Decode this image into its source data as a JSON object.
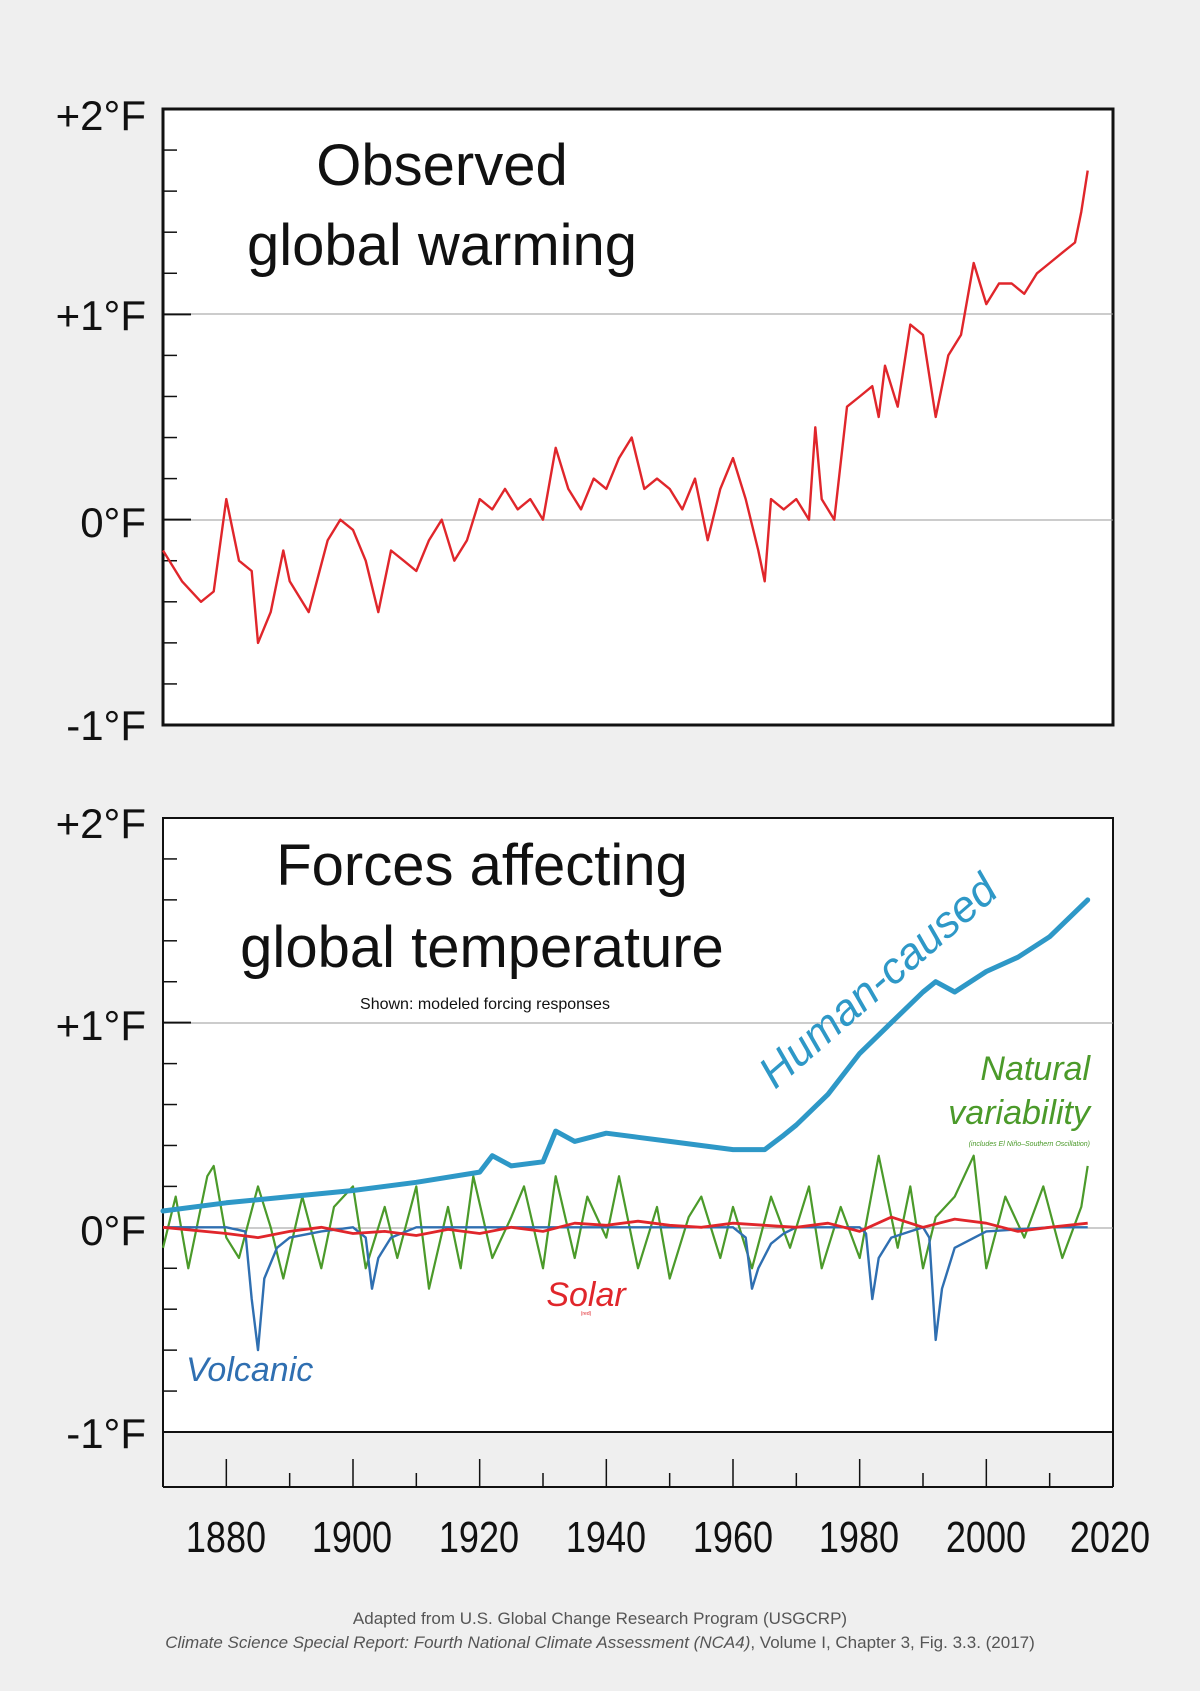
{
  "colors": {
    "observed": "#e0262b",
    "human": "#2e98c7",
    "natural": "#4b9a2a",
    "solar": "#e0262b",
    "volcanic": "#2f6fb1",
    "background": "#efefef",
    "panel": "#ffffff"
  },
  "caption": {
    "line1": "Adapted from U.S. Global Change Research Program (USGCRP)",
    "line2_italic": "Climate Science Special Report: Fourth National Climate Assessment (NCA4)",
    "line2_rest": ", Volume I, Chapter 3, Fig. 3.3. (2017)"
  },
  "chart_data": [
    {
      "type": "line",
      "title": "Observed global warming",
      "title_lines": [
        "Observed",
        "global warming"
      ],
      "xlim": [
        1870,
        2020
      ],
      "ylim": [
        -1,
        2
      ],
      "y_tick_labels": [
        {
          "value": 2,
          "label": "+2°F"
        },
        {
          "value": 1,
          "label": "+1°F"
        },
        {
          "value": 0,
          "label": "0°F"
        },
        {
          "value": -1,
          "label": "-1°F"
        }
      ],
      "grid": "horizontal at +1°F and 0°F",
      "series": [
        {
          "color": "#e0262b",
          "x": [
            1870,
            1873,
            1876,
            1878,
            1880,
            1882,
            1884,
            1885,
            1887,
            1889,
            1890,
            1893,
            1896,
            1898,
            1900,
            1902,
            1904,
            1906,
            1908,
            1910,
            1912,
            1914,
            1916,
            1918,
            1920,
            1922,
            1924,
            1926,
            1928,
            1930,
            1932,
            1934,
            1936,
            1938,
            1940,
            1942,
            1944,
            1946,
            1948,
            1950,
            1952,
            1954,
            1956,
            1958,
            1960,
            1962,
            1964,
            1965,
            1966,
            1968,
            1970,
            1972,
            1973,
            1974,
            1976,
            1978,
            1980,
            1982,
            1983,
            1984,
            1986,
            1988,
            1990,
            1992,
            1994,
            1996,
            1998,
            2000,
            2002,
            2004,
            2006,
            2008,
            2010,
            2012,
            2014,
            2015,
            2016
          ],
          "y": [
            -0.15,
            -0.3,
            -0.4,
            -0.35,
            0.1,
            -0.2,
            -0.25,
            -0.6,
            -0.45,
            -0.15,
            -0.3,
            -0.45,
            -0.1,
            0.0,
            -0.05,
            -0.2,
            -0.45,
            -0.15,
            -0.2,
            -0.25,
            -0.1,
            0.0,
            -0.2,
            -0.1,
            0.1,
            0.05,
            0.15,
            0.05,
            0.1,
            0.0,
            0.35,
            0.15,
            0.05,
            0.2,
            0.15,
            0.3,
            0.4,
            0.15,
            0.2,
            0.15,
            0.05,
            0.2,
            -0.1,
            0.15,
            0.3,
            0.1,
            -0.15,
            -0.3,
            0.1,
            0.05,
            0.1,
            0.0,
            0.45,
            0.1,
            0.0,
            0.55,
            0.6,
            0.65,
            0.5,
            0.75,
            0.55,
            0.95,
            0.9,
            0.5,
            0.8,
            0.9,
            1.25,
            1.05,
            1.15,
            1.15,
            1.1,
            1.2,
            1.25,
            1.3,
            1.35,
            1.5,
            1.7
          ]
        }
      ]
    },
    {
      "type": "line",
      "title": "Forces affecting global temperature",
      "title_lines": [
        "Forces affecting",
        "global temperature"
      ],
      "subtitle": "Shown: modeled forcing responses",
      "xlim": [
        1870,
        2020
      ],
      "ylim": [
        -1,
        2
      ],
      "x_tick_labels": [
        "1880",
        "1900",
        "1920",
        "1940",
        "1960",
        "1980",
        "2000",
        "2020"
      ],
      "y_tick_labels": [
        {
          "value": 2,
          "label": "+2°F"
        },
        {
          "value": 1,
          "label": "+1°F"
        },
        {
          "value": 0,
          "label": "0°F"
        },
        {
          "value": -1,
          "label": "-1°F"
        }
      ],
      "grid": "horizontal at +1°F and 0°F",
      "series": [
        {
          "name": "Human-caused",
          "color": "#2e98c7",
          "x": [
            1870,
            1880,
            1890,
            1900,
            1910,
            1920,
            1922,
            1925,
            1930,
            1932,
            1935,
            1940,
            1945,
            1950,
            1955,
            1960,
            1965,
            1968,
            1970,
            1975,
            1980,
            1985,
            1990,
            1992,
            1995,
            2000,
            2005,
            2010,
            2016
          ],
          "y": [
            0.08,
            0.12,
            0.15,
            0.18,
            0.22,
            0.27,
            0.35,
            0.3,
            0.32,
            0.47,
            0.42,
            0.46,
            0.44,
            0.42,
            0.4,
            0.38,
            0.38,
            0.45,
            0.5,
            0.65,
            0.85,
            1.0,
            1.15,
            1.2,
            1.15,
            1.25,
            1.32,
            1.42,
            1.6
          ]
        },
        {
          "name": "Natural variability",
          "note": "(includes El Niño–Southern Oscillation)",
          "color": "#4b9a2a",
          "x": [
            1870,
            1872,
            1874,
            1877,
            1878,
            1880,
            1882,
            1885,
            1887,
            1889,
            1892,
            1895,
            1897,
            1900,
            1902,
            1905,
            1907,
            1910,
            1912,
            1915,
            1917,
            1919,
            1922,
            1925,
            1927,
            1930,
            1932,
            1935,
            1937,
            1940,
            1942,
            1945,
            1948,
            1950,
            1953,
            1955,
            1958,
            1960,
            1963,
            1966,
            1969,
            1972,
            1974,
            1977,
            1980,
            1983,
            1986,
            1988,
            1990,
            1992,
            1995,
            1998,
            2000,
            2003,
            2006,
            2009,
            2012,
            2015,
            2016
          ],
          "y": [
            -0.1,
            0.15,
            -0.2,
            0.25,
            0.3,
            -0.05,
            -0.15,
            0.2,
            0.0,
            -0.25,
            0.15,
            -0.2,
            0.1,
            0.2,
            -0.2,
            0.1,
            -0.15,
            0.2,
            -0.3,
            0.1,
            -0.2,
            0.25,
            -0.15,
            0.05,
            0.2,
            -0.2,
            0.25,
            -0.15,
            0.15,
            -0.05,
            0.25,
            -0.2,
            0.1,
            -0.25,
            0.05,
            0.15,
            -0.15,
            0.1,
            -0.2,
            0.15,
            -0.1,
            0.2,
            -0.2,
            0.1,
            -0.15,
            0.35,
            -0.1,
            0.2,
            -0.2,
            0.05,
            0.15,
            0.35,
            -0.2,
            0.15,
            -0.05,
            0.2,
            -0.15,
            0.1,
            0.3
          ]
        },
        {
          "name": "Solar",
          "note": "(red)",
          "color": "#e0262b",
          "x": [
            1870,
            1880,
            1885,
            1890,
            1895,
            1900,
            1905,
            1910,
            1915,
            1920,
            1925,
            1930,
            1935,
            1940,
            1945,
            1950,
            1955,
            1960,
            1965,
            1970,
            1975,
            1980,
            1985,
            1990,
            1995,
            2000,
            2005,
            2010,
            2016
          ],
          "y": [
            0.0,
            -0.03,
            -0.05,
            -0.02,
            0.0,
            -0.03,
            -0.02,
            -0.04,
            -0.01,
            -0.03,
            0.0,
            -0.02,
            0.02,
            0.01,
            0.03,
            0.01,
            0.0,
            0.02,
            0.01,
            0.0,
            0.02,
            -0.02,
            0.05,
            0.0,
            0.04,
            0.02,
            -0.02,
            0.0,
            0.02
          ]
        },
        {
          "name": "Volcanic",
          "color": "#2f6fb1",
          "x": [
            1870,
            1880,
            1883,
            1884,
            1885,
            1886,
            1888,
            1890,
            1895,
            1900,
            1902,
            1903,
            1904,
            1906,
            1910,
            1920,
            1940,
            1960,
            1962,
            1963,
            1964,
            1966,
            1968,
            1970,
            1975,
            1980,
            1981,
            1982,
            1983,
            1985,
            1988,
            1990,
            1991,
            1992,
            1993,
            1995,
            2000,
            2010,
            2016
          ],
          "y": [
            0.0,
            0.0,
            -0.02,
            -0.35,
            -0.6,
            -0.25,
            -0.1,
            -0.05,
            -0.02,
            0.0,
            -0.05,
            -0.3,
            -0.15,
            -0.05,
            0.0,
            0.0,
            0.0,
            0.0,
            -0.05,
            -0.3,
            -0.2,
            -0.08,
            -0.03,
            0.0,
            0.0,
            0.0,
            -0.03,
            -0.35,
            -0.15,
            -0.05,
            -0.02,
            0.0,
            -0.05,
            -0.55,
            -0.3,
            -0.1,
            -0.02,
            0.0,
            0.0
          ]
        }
      ]
    }
  ]
}
